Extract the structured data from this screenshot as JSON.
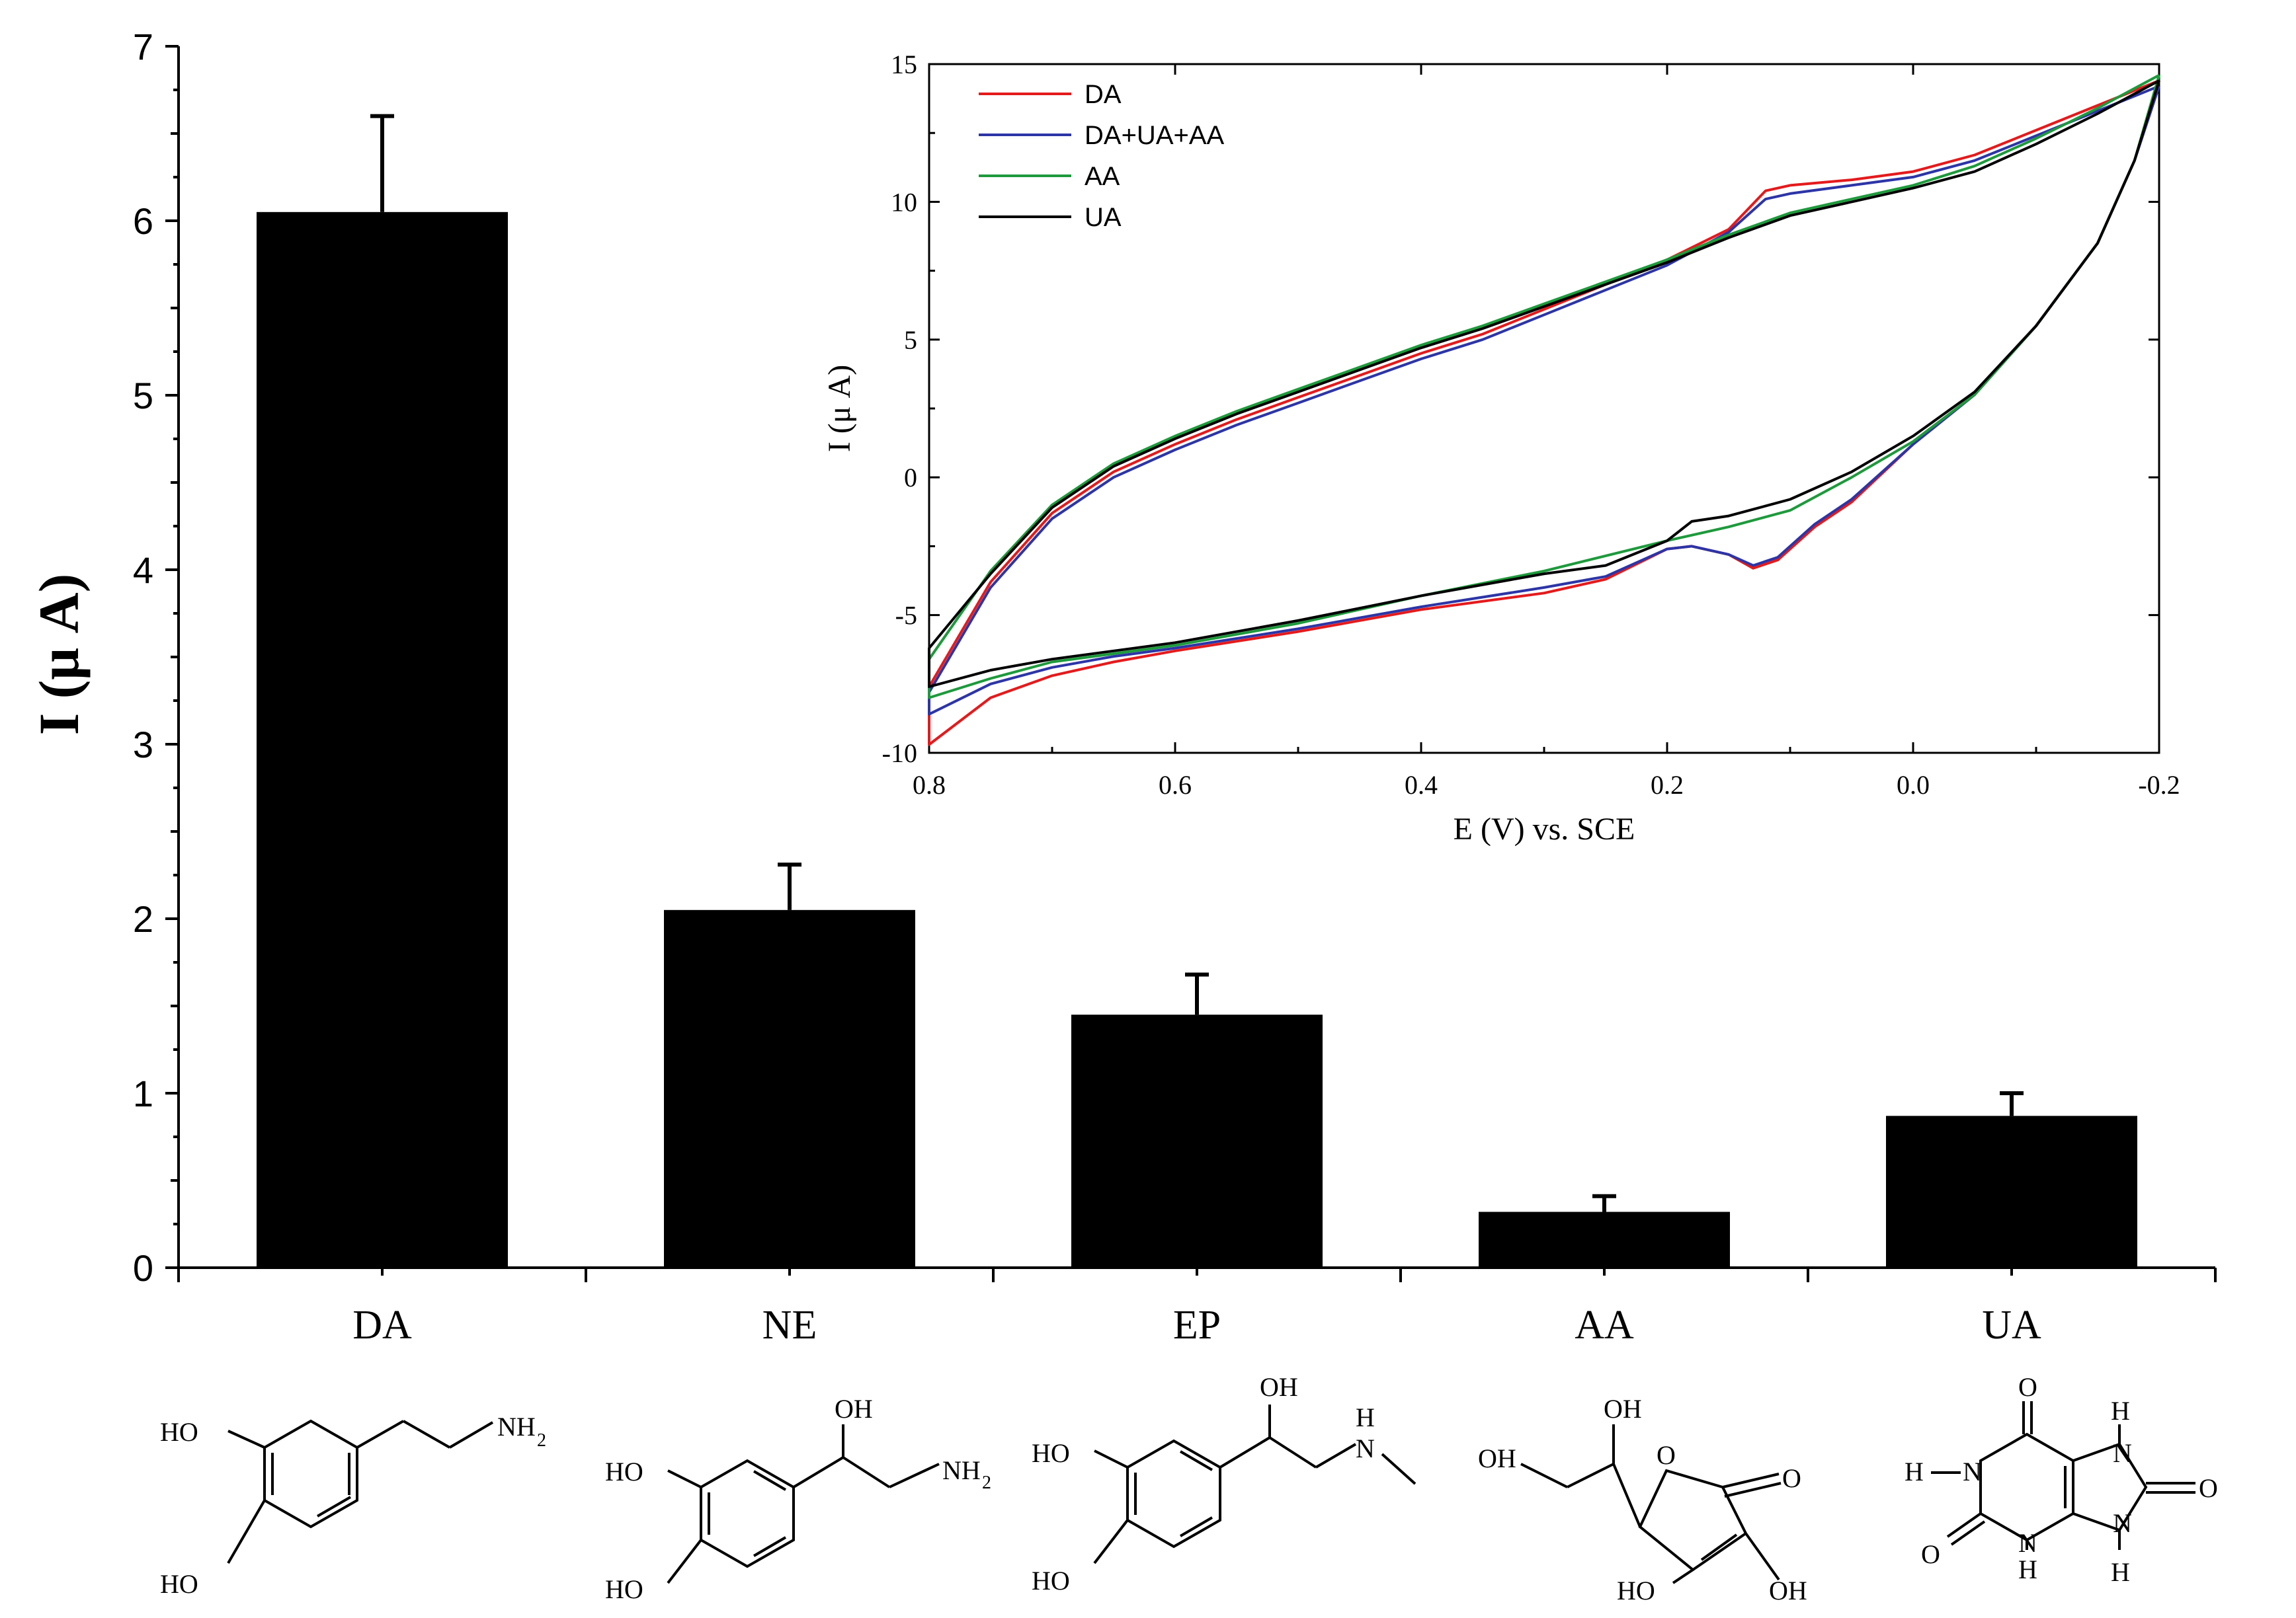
{
  "chart_data": [
    {
      "type": "bar",
      "title": "",
      "xlabel": "",
      "ylabel": "I (μ A)",
      "ylim": [
        0,
        7
      ],
      "yticks": [
        "0",
        "1",
        "2",
        "3",
        "4",
        "5",
        "6",
        "7"
      ],
      "categories": [
        "DA",
        "NE",
        "EP",
        "AA",
        "UA"
      ],
      "values": [
        6.05,
        2.05,
        1.45,
        0.32,
        0.87
      ],
      "errors": [
        0.55,
        0.26,
        0.23,
        0.09,
        0.13
      ]
    },
    {
      "type": "line",
      "title": "",
      "xlabel": "E (V) vs. SCE",
      "ylabel": "I (μ A)",
      "xlim": [
        0.8,
        -0.2
      ],
      "ylim": [
        -10,
        15
      ],
      "xticks": [
        "0.8",
        "0.6",
        "0.4",
        "0.2",
        "0.0",
        "-0.2"
      ],
      "yticks": [
        "-10",
        "-5",
        "0",
        "5",
        "10",
        "15"
      ],
      "legend_position": "top-left",
      "series": [
        {
          "name": "DA",
          "color": "#e41a1c",
          "forward": [
            [
              -0.2,
              14.4
            ],
            [
              -0.15,
              13.5
            ],
            [
              -0.1,
              12.6
            ],
            [
              -0.05,
              11.7
            ],
            [
              0.0,
              11.1
            ],
            [
              0.05,
              10.8
            ],
            [
              0.1,
              10.6
            ],
            [
              0.12,
              10.4
            ],
            [
              0.15,
              9.0
            ],
            [
              0.2,
              7.9
            ],
            [
              0.25,
              7.0
            ],
            [
              0.3,
              6.1
            ],
            [
              0.35,
              5.2
            ],
            [
              0.4,
              4.5
            ],
            [
              0.45,
              3.7
            ],
            [
              0.5,
              2.9
            ],
            [
              0.55,
              2.1
            ],
            [
              0.6,
              1.2
            ],
            [
              0.65,
              0.2
            ],
            [
              0.7,
              -1.3
            ],
            [
              0.75,
              -3.8
            ],
            [
              0.8,
              -7.6
            ]
          ],
          "reverse": [
            [
              0.8,
              -9.7
            ],
            [
              0.75,
              -8.0
            ],
            [
              0.7,
              -7.2
            ],
            [
              0.65,
              -6.7
            ],
            [
              0.6,
              -6.3
            ],
            [
              0.5,
              -5.6
            ],
            [
              0.4,
              -4.8
            ],
            [
              0.3,
              -4.2
            ],
            [
              0.25,
              -3.7
            ],
            [
              0.2,
              -2.6
            ],
            [
              0.18,
              -2.5
            ],
            [
              0.15,
              -2.8
            ],
            [
              0.13,
              -3.3
            ],
            [
              0.11,
              -3.0
            ],
            [
              0.08,
              -1.8
            ],
            [
              0.05,
              -0.9
            ],
            [
              0.0,
              1.2
            ],
            [
              -0.05,
              3.0
            ],
            [
              -0.1,
              5.5
            ],
            [
              -0.15,
              8.5
            ],
            [
              -0.18,
              11.5
            ],
            [
              -0.2,
              14.4
            ]
          ]
        },
        {
          "name": "DA+UA+AA",
          "color": "#2c35a6",
          "forward": [
            [
              -0.2,
              14.2
            ],
            [
              -0.15,
              13.3
            ],
            [
              -0.1,
              12.4
            ],
            [
              -0.05,
              11.5
            ],
            [
              0.0,
              10.9
            ],
            [
              0.05,
              10.6
            ],
            [
              0.1,
              10.3
            ],
            [
              0.12,
              10.1
            ],
            [
              0.15,
              8.9
            ],
            [
              0.2,
              7.7
            ],
            [
              0.25,
              6.8
            ],
            [
              0.3,
              5.9
            ],
            [
              0.35,
              5.0
            ],
            [
              0.4,
              4.3
            ],
            [
              0.45,
              3.5
            ],
            [
              0.5,
              2.7
            ],
            [
              0.55,
              1.9
            ],
            [
              0.6,
              1.0
            ],
            [
              0.65,
              0.0
            ],
            [
              0.7,
              -1.5
            ],
            [
              0.75,
              -4.0
            ],
            [
              0.8,
              -7.8
            ]
          ],
          "reverse": [
            [
              0.8,
              -8.6
            ],
            [
              0.75,
              -7.5
            ],
            [
              0.7,
              -6.9
            ],
            [
              0.65,
              -6.5
            ],
            [
              0.6,
              -6.2
            ],
            [
              0.5,
              -5.5
            ],
            [
              0.4,
              -4.7
            ],
            [
              0.3,
              -4.0
            ],
            [
              0.25,
              -3.6
            ],
            [
              0.2,
              -2.6
            ],
            [
              0.18,
              -2.5
            ],
            [
              0.15,
              -2.8
            ],
            [
              0.13,
              -3.2
            ],
            [
              0.11,
              -2.9
            ],
            [
              0.08,
              -1.7
            ],
            [
              0.05,
              -0.8
            ],
            [
              0.0,
              1.2
            ],
            [
              -0.05,
              3.0
            ],
            [
              -0.1,
              5.5
            ],
            [
              -0.15,
              8.5
            ],
            [
              -0.18,
              11.5
            ],
            [
              -0.2,
              14.2
            ]
          ]
        },
        {
          "name": "AA",
          "color": "#1e9a3c",
          "forward": [
            [
              -0.2,
              14.6
            ],
            [
              -0.15,
              13.4
            ],
            [
              -0.1,
              12.3
            ],
            [
              -0.05,
              11.3
            ],
            [
              0.0,
              10.6
            ],
            [
              0.05,
              10.1
            ],
            [
              0.1,
              9.6
            ],
            [
              0.15,
              8.8
            ],
            [
              0.2,
              7.9
            ],
            [
              0.25,
              7.1
            ],
            [
              0.3,
              6.3
            ],
            [
              0.35,
              5.5
            ],
            [
              0.4,
              4.8
            ],
            [
              0.45,
              4.0
            ],
            [
              0.5,
              3.2
            ],
            [
              0.55,
              2.4
            ],
            [
              0.6,
              1.5
            ],
            [
              0.65,
              0.5
            ],
            [
              0.7,
              -1.0
            ],
            [
              0.75,
              -3.4
            ],
            [
              0.8,
              -6.6
            ]
          ],
          "reverse": [
            [
              0.8,
              -8.0
            ],
            [
              0.75,
              -7.3
            ],
            [
              0.7,
              -6.7
            ],
            [
              0.65,
              -6.4
            ],
            [
              0.6,
              -6.1
            ],
            [
              0.5,
              -5.3
            ],
            [
              0.4,
              -4.3
            ],
            [
              0.3,
              -3.4
            ],
            [
              0.2,
              -2.3
            ],
            [
              0.15,
              -1.8
            ],
            [
              0.1,
              -1.2
            ],
            [
              0.05,
              0.0
            ],
            [
              0.0,
              1.3
            ],
            [
              -0.05,
              3.0
            ],
            [
              -0.1,
              5.5
            ],
            [
              -0.15,
              8.5
            ],
            [
              -0.18,
              11.5
            ],
            [
              -0.2,
              14.6
            ]
          ]
        },
        {
          "name": "UA",
          "color": "#000000",
          "forward": [
            [
              -0.2,
              14.4
            ],
            [
              -0.15,
              13.2
            ],
            [
              -0.1,
              12.1
            ],
            [
              -0.05,
              11.1
            ],
            [
              0.0,
              10.5
            ],
            [
              0.05,
              10.0
            ],
            [
              0.1,
              9.5
            ],
            [
              0.15,
              8.7
            ],
            [
              0.2,
              7.8
            ],
            [
              0.25,
              7.0
            ],
            [
              0.3,
              6.2
            ],
            [
              0.35,
              5.4
            ],
            [
              0.4,
              4.7
            ],
            [
              0.45,
              3.9
            ],
            [
              0.5,
              3.1
            ],
            [
              0.55,
              2.3
            ],
            [
              0.6,
              1.4
            ],
            [
              0.65,
              0.4
            ],
            [
              0.7,
              -1.1
            ],
            [
              0.75,
              -3.5
            ],
            [
              0.8,
              -6.2
            ]
          ],
          "reverse": [
            [
              0.8,
              -7.6
            ],
            [
              0.75,
              -7.0
            ],
            [
              0.7,
              -6.6
            ],
            [
              0.65,
              -6.3
            ],
            [
              0.6,
              -6.0
            ],
            [
              0.5,
              -5.2
            ],
            [
              0.4,
              -4.3
            ],
            [
              0.3,
              -3.5
            ],
            [
              0.25,
              -3.2
            ],
            [
              0.2,
              -2.3
            ],
            [
              0.18,
              -1.6
            ],
            [
              0.15,
              -1.4
            ],
            [
              0.1,
              -0.8
            ],
            [
              0.05,
              0.2
            ],
            [
              0.0,
              1.5
            ],
            [
              -0.05,
              3.1
            ],
            [
              -0.1,
              5.5
            ],
            [
              -0.15,
              8.5
            ],
            [
              -0.18,
              11.5
            ],
            [
              -0.2,
              14.4
            ]
          ]
        }
      ]
    }
  ],
  "structures": [
    {
      "name": "DA",
      "labels": [
        "HO",
        "HO",
        "NH",
        "2"
      ]
    },
    {
      "name": "NE",
      "labels": [
        "HO",
        "HO",
        "OH",
        "NH",
        "2"
      ]
    },
    {
      "name": "EP",
      "labels": [
        "HO",
        "HO",
        "OH",
        "H",
        "N"
      ]
    },
    {
      "name": "AA",
      "labels": [
        "OH",
        "OH",
        "O",
        "O",
        "HO",
        "OH"
      ]
    },
    {
      "name": "UA",
      "labels": [
        "O",
        "H",
        "H",
        "N",
        "N",
        "O",
        "O",
        "N",
        "N",
        "H",
        "H"
      ]
    }
  ]
}
